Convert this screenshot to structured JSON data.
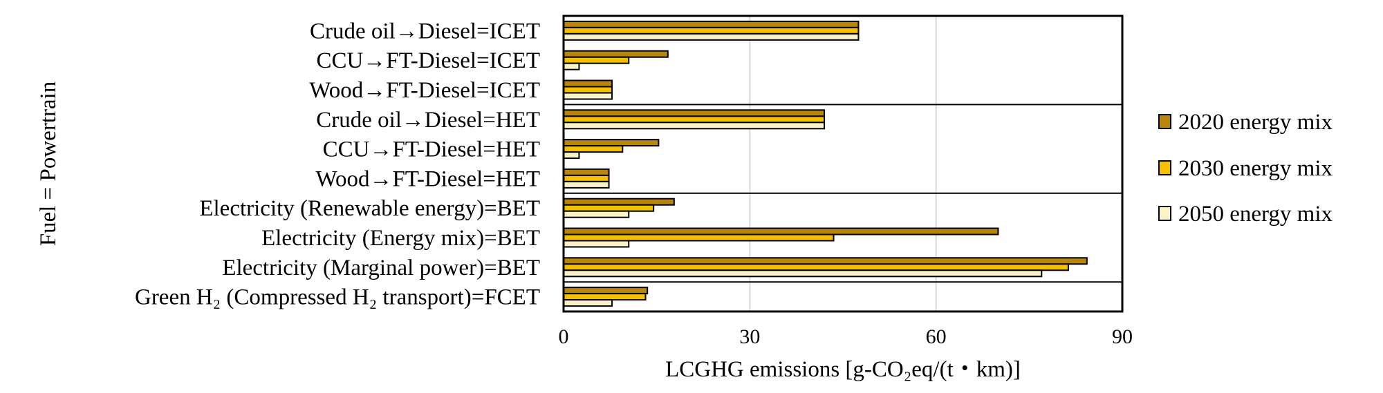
{
  "chart_data": {
    "type": "bar",
    "orientation": "horizontal",
    "title": "",
    "xlabel": "LCGHG emissions [g-CO₂eq/(t・km)]",
    "ylabel": "Fuel = Powertrain",
    "xlim": [
      0,
      90
    ],
    "xticks": [
      "0",
      "30",
      "60",
      "90"
    ],
    "grid": "vertical",
    "legend_position": "right",
    "categories": [
      "Crude oil→Diesel=ICET",
      "CCU→FT-Diesel=ICET",
      "Wood→FT-Diesel=ICET",
      "Crude oil→Diesel=HET",
      "CCU→FT-Diesel=HET",
      "Wood→FT-Diesel=HET",
      "Electricity (Renewable energy)=BET",
      "Electricity (Energy mix)=BET",
      "Electricity (Marginal power)=BET",
      "Green H₂ (Compressed H₂  transport)=FCET"
    ],
    "group_separators_after": [
      2,
      5,
      8
    ],
    "series": [
      {
        "name": "2020 energy mix",
        "color": "#b8860b",
        "values": [
          47.5,
          16.8,
          7.8,
          42.0,
          15.3,
          7.3,
          17.8,
          70.0,
          84.3,
          13.5
        ]
      },
      {
        "name": "2030 energy mix",
        "color": "#f5c000",
        "values": [
          47.5,
          10.5,
          7.8,
          42.0,
          9.5,
          7.3,
          14.5,
          43.5,
          81.3,
          13.2
        ]
      },
      {
        "name": "2050 energy mix",
        "color": "#fbf2c8",
        "values": [
          47.5,
          2.5,
          7.8,
          42.0,
          2.5,
          7.3,
          10.5,
          10.5,
          77.0,
          7.8
        ]
      }
    ]
  }
}
